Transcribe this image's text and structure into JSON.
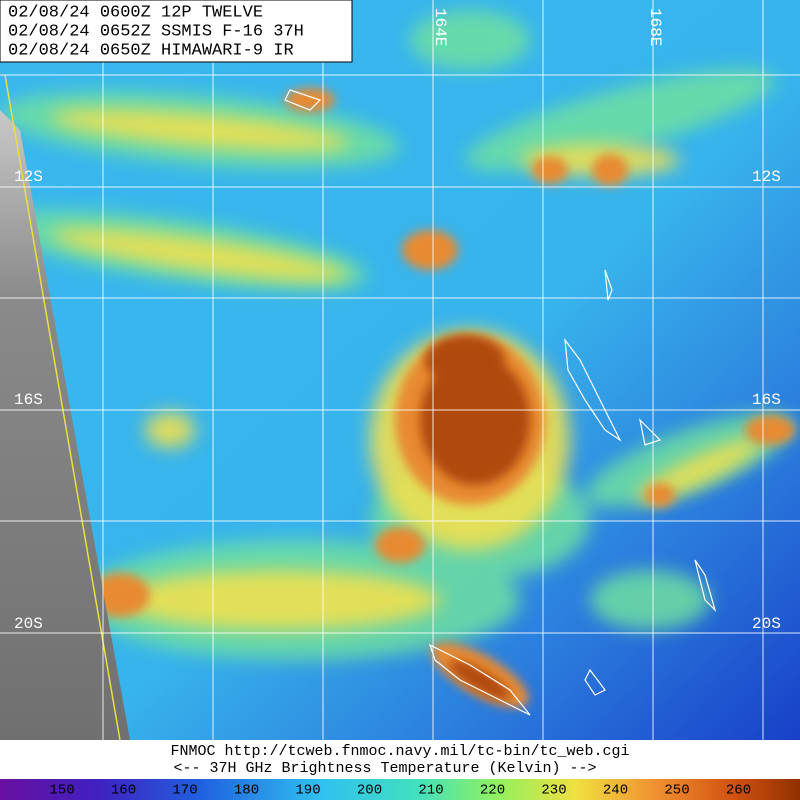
{
  "header": {
    "lines": [
      "02/08/24 0600Z  12P TWELVE",
      "02/08/24 0652Z  SSMIS F-16 37H",
      "02/08/24 0650Z  HIMAWARI-9 IR"
    ]
  },
  "grid": {
    "lat_labels": [
      "12S",
      "16S",
      "20S"
    ],
    "lon_labels": [
      "164E",
      "168E"
    ]
  },
  "footer": {
    "source": "FNMOC  http://tcweb.fnmoc.navy.mil/tc-bin/tc_web.cgi",
    "caption": "<--   37H GHz Brightness Temperature (Kelvin)   -->"
  },
  "colorbar": {
    "ticks": [
      150,
      160,
      170,
      180,
      190,
      200,
      210,
      220,
      230,
      240,
      250,
      260
    ]
  }
}
